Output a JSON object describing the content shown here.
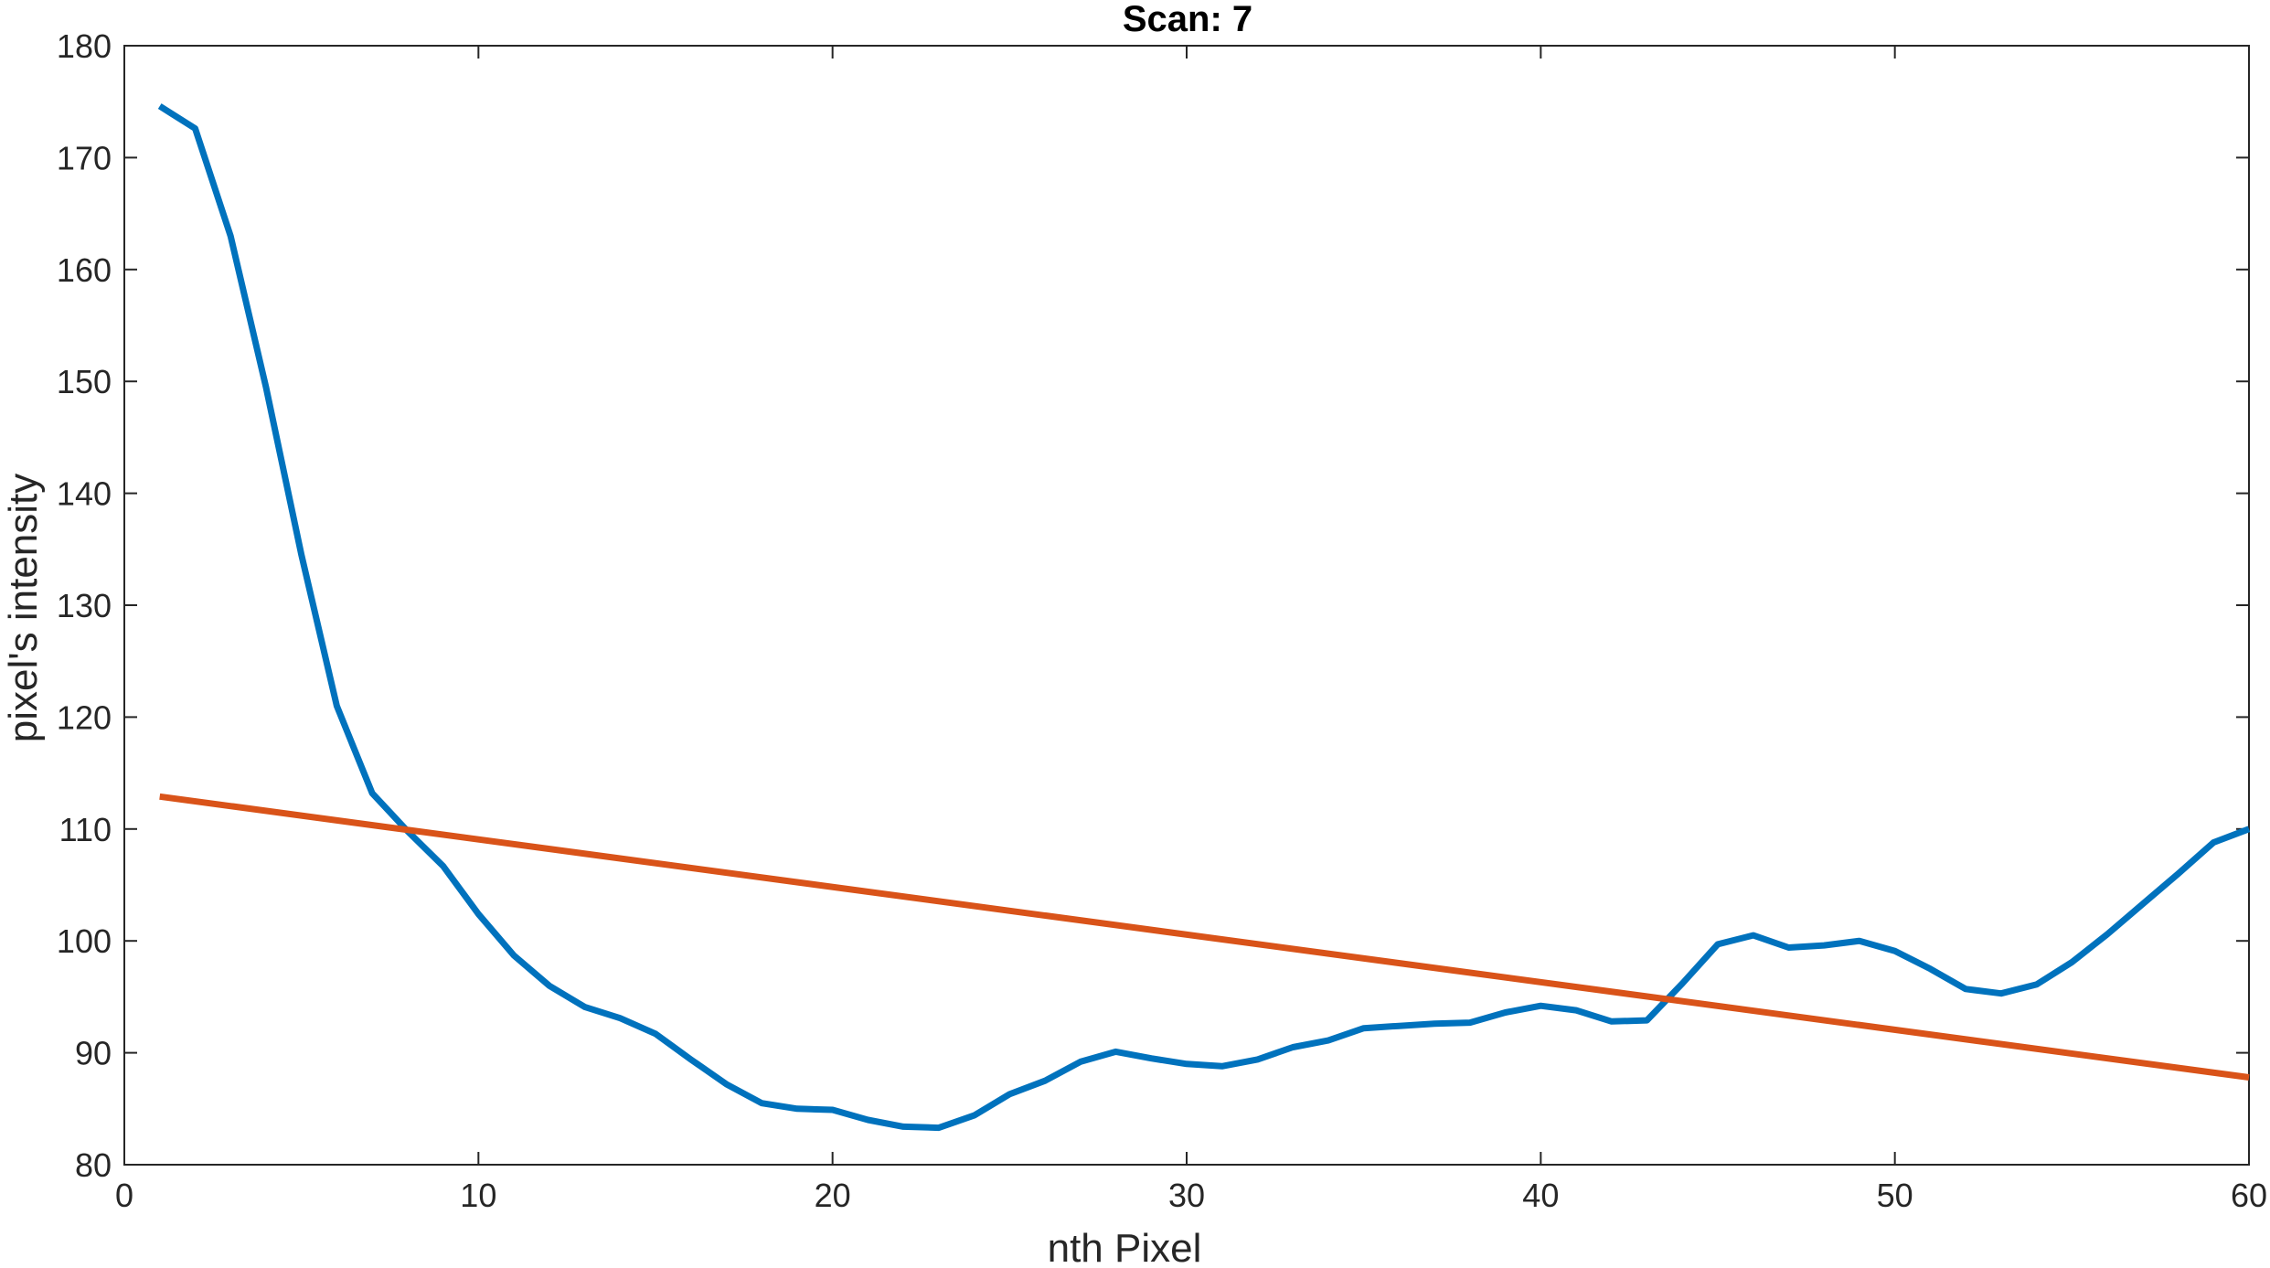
{
  "chart_data": {
    "type": "line",
    "title": "Scan: 7",
    "xlabel": "nth Pixel",
    "ylabel": "pixel's intensity",
    "xlim": [
      0,
      60
    ],
    "ylim": [
      80,
      180
    ],
    "xticks": [
      0,
      10,
      20,
      30,
      40,
      50,
      60
    ],
    "yticks": [
      80,
      90,
      100,
      110,
      120,
      130,
      140,
      150,
      160,
      170,
      180
    ],
    "grid": false,
    "legend": "none",
    "series": [
      {
        "color": "#0072BD",
        "x": [
          1,
          2,
          3,
          4,
          5,
          6,
          7,
          8,
          9,
          10,
          11,
          12,
          13,
          14,
          15,
          16,
          17,
          18,
          19,
          20,
          21,
          22,
          23,
          24,
          25,
          26,
          27,
          28,
          29,
          30,
          31,
          32,
          33,
          34,
          35,
          36,
          37,
          38,
          39,
          40,
          41,
          42,
          43,
          44,
          45,
          46,
          47,
          48,
          49,
          50,
          51,
          52,
          53,
          54,
          55,
          56,
          57,
          58,
          59,
          60
        ],
        "y": [
          174.6,
          172.6,
          163,
          149.5,
          134.5,
          121,
          113.2,
          109.8,
          106.7,
          102.4,
          98.7,
          96,
          94.1,
          93.1,
          91.7,
          89.4,
          87.2,
          85.5,
          85,
          84.9,
          84,
          83.4,
          83.3,
          84.4,
          86.3,
          87.5,
          89.2,
          90.1,
          89.5,
          89,
          88.8,
          89.4,
          90.5,
          91.1,
          92.2,
          92.4,
          92.6,
          92.7,
          93.6,
          94.2,
          93.8,
          92.8,
          92.9,
          96.2,
          99.7,
          100.5,
          99.4,
          99.6,
          100,
          99.1,
          97.5,
          95.7,
          95.3,
          96.1,
          98.1,
          100.6,
          103.3,
          106,
          108.8,
          110
        ]
      },
      {
        "color": "#D95319",
        "x": [
          1,
          60
        ],
        "y": [
          112.9,
          87.8
        ]
      }
    ]
  }
}
